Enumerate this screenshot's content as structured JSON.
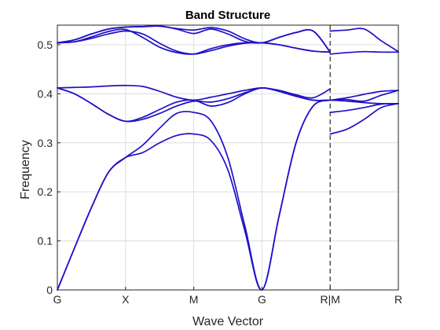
{
  "chart_data": {
    "type": "line",
    "title": "Band Structure",
    "xlabel": "Wave Vector",
    "ylabel": "Frequency",
    "ylim": [
      0,
      0.54
    ],
    "xlim": [
      0,
      5
    ],
    "grid": true,
    "line_color": "#1f10c8",
    "x_ticks": [
      {
        "x": 0,
        "label": "G"
      },
      {
        "x": 1,
        "label": "X"
      },
      {
        "x": 2,
        "label": "M"
      },
      {
        "x": 3,
        "label": "G"
      },
      {
        "x": 4,
        "label": "R|M"
      },
      {
        "x": 5,
        "label": "R"
      }
    ],
    "y_ticks": [
      0,
      0.1,
      0.2,
      0.3,
      0.4,
      0.5
    ],
    "y_tick_labels": [
      "0",
      "0.1",
      "0.2",
      "0.3",
      "0.4",
      "0.5"
    ],
    "separator_x": 4,
    "series": [
      {
        "x": [
          0,
          0.25,
          0.5,
          0.75,
          1.0,
          1.25,
          1.5,
          1.75,
          2.0,
          2.25,
          2.5,
          2.75,
          3.0,
          3.25,
          3.5,
          3.75,
          4.0
        ],
        "values": [
          0,
          0.085,
          0.168,
          0.24,
          0.27,
          0.28,
          0.3,
          0.315,
          0.318,
          0.305,
          0.245,
          0.12,
          0,
          0.15,
          0.3,
          0.375,
          0.387
        ]
      },
      {
        "x": [
          0,
          0.25,
          0.5,
          0.75,
          1.0,
          1.25,
          1.5,
          1.75,
          2.0,
          2.25,
          2.5,
          2.75,
          3.0,
          3.25,
          3.5,
          3.75,
          4.0
        ],
        "values": [
          0,
          0.085,
          0.168,
          0.24,
          0.27,
          0.295,
          0.33,
          0.36,
          0.362,
          0.345,
          0.27,
          0.13,
          0,
          0.15,
          0.3,
          0.375,
          0.387
        ]
      },
      {
        "x": [
          0,
          0.25,
          0.5,
          0.75,
          1.0,
          1.25,
          1.5,
          1.75,
          2.0,
          2.25,
          2.5,
          2.75,
          3.0,
          3.25,
          3.5,
          3.75,
          4.0
        ],
        "values": [
          0.412,
          0.4,
          0.38,
          0.358,
          0.344,
          0.348,
          0.36,
          0.375,
          0.385,
          0.383,
          0.39,
          0.402,
          0.412,
          0.405,
          0.395,
          0.387,
          0.387
        ]
      },
      {
        "x": [
          0,
          0.25,
          0.5,
          0.75,
          1.0,
          1.25,
          1.5,
          1.75,
          2.0,
          2.25,
          2.5,
          2.75,
          3.0,
          3.25,
          3.5,
          3.75,
          4.0
        ],
        "values": [
          0.412,
          0.4,
          0.38,
          0.358,
          0.344,
          0.352,
          0.368,
          0.383,
          0.387,
          0.375,
          0.382,
          0.4,
          0.412,
          0.405,
          0.395,
          0.387,
          0.387
        ]
      },
      {
        "x": [
          0,
          0.25,
          0.5,
          0.75,
          1.0,
          1.25,
          1.5,
          1.75,
          2.0,
          2.25,
          2.5,
          2.75,
          3.0,
          3.25,
          3.5,
          3.75,
          4.0
        ],
        "values": [
          0.412,
          0.413,
          0.414,
          0.416,
          0.417,
          0.415,
          0.405,
          0.393,
          0.387,
          0.393,
          0.4,
          0.407,
          0.412,
          0.407,
          0.398,
          0.392,
          0.41
        ]
      },
      {
        "x": [
          0,
          0.25,
          0.5,
          0.75,
          1.0,
          1.25,
          1.5,
          1.75,
          2.0,
          2.25,
          2.5,
          2.75,
          3.0,
          3.25,
          3.5,
          3.75,
          4.0
        ],
        "values": [
          0.504,
          0.506,
          0.513,
          0.522,
          0.528,
          0.522,
          0.503,
          0.487,
          0.481,
          0.488,
          0.497,
          0.503,
          0.504,
          0.5,
          0.493,
          0.487,
          0.485
        ]
      },
      {
        "x": [
          0,
          0.25,
          0.5,
          0.75,
          1.0,
          1.25,
          1.5,
          1.75,
          2.0,
          2.25,
          2.5,
          2.75,
          3.0,
          3.25,
          3.5,
          3.75,
          4.0
        ],
        "values": [
          0.504,
          0.506,
          0.516,
          0.527,
          0.531,
          0.515,
          0.495,
          0.484,
          0.481,
          0.492,
          0.5,
          0.504,
          0.504,
          0.5,
          0.493,
          0.487,
          0.485
        ]
      },
      {
        "x": [
          0,
          0.25,
          0.5,
          0.75,
          1.0,
          1.25,
          1.5,
          1.75,
          2.0,
          2.25,
          2.5,
          2.75,
          3.0,
          3.25,
          3.5,
          3.75,
          4.0
        ],
        "values": [
          0.504,
          0.51,
          0.522,
          0.532,
          0.536,
          0.537,
          0.538,
          0.532,
          0.523,
          0.532,
          0.522,
          0.507,
          0.504,
          0.515,
          0.525,
          0.528,
          0.485
        ]
      },
      {
        "x": [
          0,
          0.25,
          0.5,
          0.75,
          1.0,
          1.25,
          1.5,
          1.75,
          2.0,
          2.25,
          2.5,
          2.75,
          3.0,
          3.25,
          3.5,
          3.75,
          4.0
        ],
        "values": [
          0.504,
          0.51,
          0.522,
          0.532,
          0.536,
          0.537,
          0.538,
          0.533,
          0.53,
          0.535,
          0.528,
          0.512,
          0.504,
          0.515,
          0.525,
          0.528,
          0.485
        ]
      },
      {
        "x": [
          4.0,
          4.25,
          4.5,
          4.75,
          5.0
        ],
        "values": [
          0.318,
          0.328,
          0.348,
          0.372,
          0.38
        ]
      },
      {
        "x": [
          4.0,
          4.25,
          4.5,
          4.75,
          5.0
        ],
        "values": [
          0.362,
          0.366,
          0.372,
          0.379,
          0.38
        ]
      },
      {
        "x": [
          4.0,
          4.25,
          4.5,
          4.75,
          5.0
        ],
        "values": [
          0.387,
          0.385,
          0.382,
          0.38,
          0.38
        ]
      },
      {
        "x": [
          4.0,
          4.25,
          4.5,
          4.75,
          5.0
        ],
        "values": [
          0.387,
          0.392,
          0.399,
          0.405,
          0.407
        ]
      },
      {
        "x": [
          4.0,
          4.25,
          4.5,
          4.75,
          5.0
        ],
        "values": [
          0.387,
          0.388,
          0.385,
          0.397,
          0.407
        ]
      },
      {
        "x": [
          4.0,
          4.25,
          4.5,
          4.75,
          5.0
        ],
        "values": [
          0.481,
          0.484,
          0.486,
          0.485,
          0.485
        ]
      },
      {
        "x": [
          4.0,
          4.25,
          4.5,
          4.75,
          5.0
        ],
        "values": [
          0.528,
          0.53,
          0.532,
          0.508,
          0.486
        ]
      }
    ]
  }
}
